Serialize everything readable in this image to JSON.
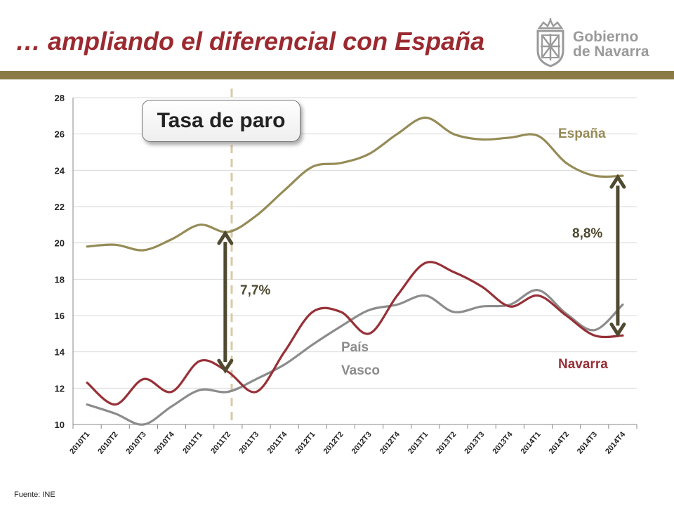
{
  "slide": {
    "title": "… ampliando el diferencial con España",
    "source": "Fuente: INE",
    "logo": {
      "line1": "Gobierno",
      "line2": "de Navarra"
    }
  },
  "callout": "Tasa de paro",
  "annotations": {
    "gap_2011": "7,7%",
    "gap_2014": "8,8%"
  },
  "colors": {
    "espana": "#958b56",
    "navarra": "#973037",
    "pais_vasco": "#8c8c8c",
    "arrow": "#4f4a30",
    "dashed": "#d9c9a6",
    "title": "#9b2a30"
  },
  "chart_data": {
    "type": "line",
    "title": "Tasa de paro",
    "categories": [
      "2010T1",
      "2010T2",
      "2010T3",
      "2010T4",
      "2011T1",
      "2011T2",
      "2011T3",
      "2011T4",
      "2012T1",
      "2012T2",
      "2012T3",
      "2012T4",
      "2013T1",
      "2013T2",
      "2013T3",
      "2013T4",
      "2014T1",
      "2014T2",
      "2014T3",
      "2014T4"
    ],
    "ylim": [
      10,
      28
    ],
    "yticks": [
      10,
      12,
      14,
      16,
      18,
      20,
      22,
      24,
      26,
      28
    ],
    "grid": true,
    "series": [
      {
        "name": "España",
        "color": "#958b56",
        "values": [
          19.8,
          19.9,
          19.6,
          20.2,
          21.0,
          20.6,
          21.5,
          22.9,
          24.2,
          24.4,
          24.9,
          26.0,
          26.9,
          26.0,
          25.7,
          25.8,
          25.9,
          24.4,
          23.7,
          23.7
        ]
      },
      {
        "name": "Navarra",
        "color": "#973037",
        "values": [
          12.3,
          11.1,
          12.5,
          11.8,
          13.5,
          12.9,
          11.8,
          14.0,
          16.2,
          16.2,
          15.0,
          17.1,
          18.9,
          18.4,
          17.6,
          16.5,
          17.1,
          16.0,
          14.9,
          14.9
        ]
      },
      {
        "name": "País Vasco",
        "color": "#8c8c8c",
        "values": [
          11.1,
          10.6,
          10.0,
          11.0,
          11.9,
          11.8,
          12.5,
          13.3,
          14.4,
          15.4,
          16.3,
          16.6,
          17.1,
          16.2,
          16.5,
          16.6,
          17.4,
          16.1,
          15.2,
          16.6
        ]
      }
    ]
  }
}
